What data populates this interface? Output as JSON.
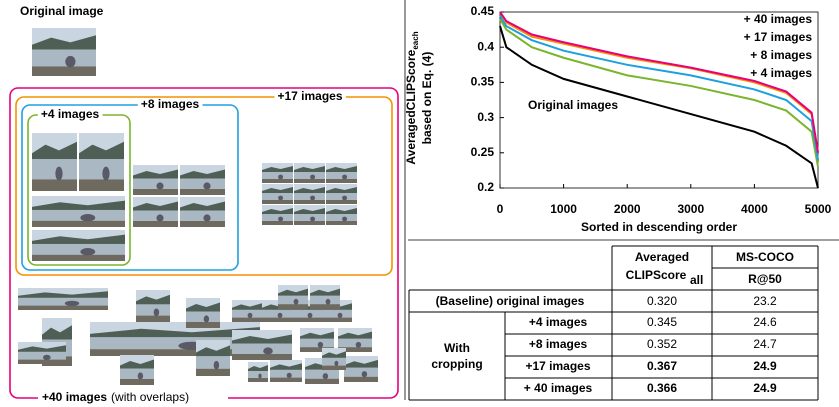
{
  "diagram": {
    "original": "Original image",
    "groups": [
      {
        "label": "+4 images",
        "color": "#7ab52e"
      },
      {
        "label": "+8 images",
        "color": "#1ea0e0"
      },
      {
        "label": "+17 images",
        "color": "#f39200"
      },
      {
        "label": "+40 images",
        "color": "#e6007e"
      }
    ],
    "note": "(with overlaps)"
  },
  "chart_data": {
    "type": "line",
    "xlabel": "Sorted in descending order",
    "ylabel": "AveragedCLIPScore",
    "ylabel_subscript": "each",
    "ylabel_line2": "based on Eq. (4)",
    "x": [
      0,
      100,
      500,
      1000,
      2000,
      3000,
      4000,
      4500,
      4900,
      5000
    ],
    "series": [
      {
        "name": "Original images",
        "color": "#000000",
        "values": [
          0.43,
          0.4,
          0.375,
          0.355,
          0.33,
          0.305,
          0.28,
          0.26,
          0.235,
          0.2
        ]
      },
      {
        "name": "+ 4 images",
        "color": "#7ab52e",
        "values": [
          0.44,
          0.425,
          0.4,
          0.385,
          0.36,
          0.345,
          0.325,
          0.31,
          0.28,
          0.23
        ]
      },
      {
        "name": "+ 8 images",
        "color": "#1ea0e0",
        "values": [
          0.445,
          0.43,
          0.41,
          0.395,
          0.375,
          0.36,
          0.34,
          0.325,
          0.295,
          0.24
        ]
      },
      {
        "name": "+ 17 images",
        "color": "#f39200",
        "values": [
          0.45,
          0.435,
          0.415,
          0.405,
          0.385,
          0.37,
          0.35,
          0.335,
          0.305,
          0.25
        ]
      },
      {
        "name": "+ 40 images",
        "color": "#e6007e",
        "values": [
          0.45,
          0.437,
          0.418,
          0.407,
          0.387,
          0.371,
          0.352,
          0.337,
          0.307,
          0.25
        ]
      }
    ],
    "xlim": [
      0,
      5000
    ],
    "xticks": [
      0,
      1000,
      2000,
      3000,
      4000,
      5000
    ],
    "ylim": [
      0.2,
      0.45
    ],
    "yticks": [
      0.2,
      0.25,
      0.3,
      0.35,
      0.4,
      0.45
    ],
    "grid": false
  },
  "table": {
    "header": {
      "score": "Averaged",
      "score_2": "CLIPScore",
      "score_sub": "all",
      "dataset": "MS-COCO",
      "metric": "R@50"
    },
    "baseline": {
      "label": "(Baseline) original images",
      "score": "0.320",
      "recall": "23.2"
    },
    "group": [
      "With",
      "cropping"
    ],
    "rows": [
      {
        "label": "+4 images",
        "color": "#7ab52e",
        "score": "0.345",
        "recall": "24.6",
        "bold": false
      },
      {
        "label": "+8 images",
        "color": "#1ea0e0",
        "score": "0.352",
        "recall": "24.7",
        "bold": false
      },
      {
        "label": "+17 images",
        "color": "#f39200",
        "score": "0.367",
        "recall": "24.9",
        "bold": true
      },
      {
        "label": "+ 40 images",
        "color": "#e6007e",
        "score": "0.366",
        "recall": "24.9",
        "bold": true
      }
    ]
  }
}
